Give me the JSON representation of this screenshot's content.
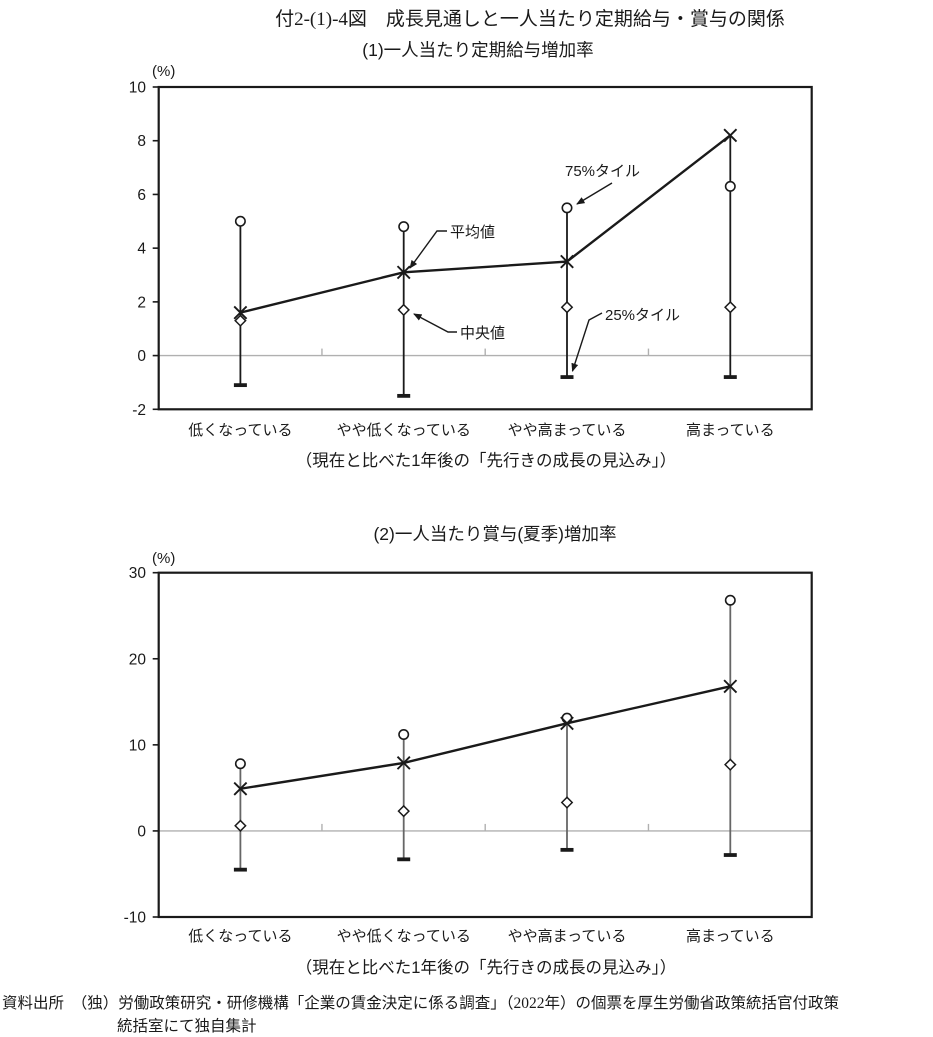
{
  "page": {
    "title": "付2-(1)-4図　成長見通しと一人当たり定期給与・賞与の関係",
    "source": {
      "line1": "資料出所　（独）労働政策研究・研修機構「企業の賃金決定に係る調査」（2022年）の個票を厚生労働省政策統括官付政策",
      "line2": "統括室にて独自集計"
    }
  },
  "chart_data": [
    {
      "type": "line",
      "title": "(1)一人当たり定期給与増加率",
      "unit_label": "(%)",
      "xlabel": "（現在と比べた1年後の「先行きの成長の見込み」）",
      "categories": [
        "低くなっている",
        "やや低くなっている",
        "やや高まっている",
        "高まっている"
      ],
      "ylim": [
        -2,
        10
      ],
      "yticks": [
        10,
        8,
        6,
        4,
        2,
        0,
        -2
      ],
      "grid": "zero-line-only",
      "legend": "inline-callouts",
      "series": [
        {
          "name": "75%タイル",
          "marker": "circle",
          "values": [
            5.0,
            4.8,
            5.5,
            6.3
          ]
        },
        {
          "name": "平均値",
          "marker": "x",
          "line": true,
          "values": [
            1.6,
            3.1,
            3.5,
            8.2
          ]
        },
        {
          "name": "中央値",
          "marker": "diamond",
          "values": [
            1.3,
            1.7,
            1.8,
            1.8
          ]
        },
        {
          "name": "25%タイル",
          "marker": "cap",
          "values": [
            -1.1,
            -1.5,
            -0.8,
            -0.8
          ]
        }
      ]
    },
    {
      "type": "line",
      "title": "(2)一人当たり賞与(夏季)増加率",
      "unit_label": "(%)",
      "xlabel": "（現在と比べた1年後の「先行きの成長の見込み」）",
      "categories": [
        "低くなっている",
        "やや低くなっている",
        "やや高まっている",
        "高まっている"
      ],
      "ylim": [
        -10,
        30
      ],
      "yticks": [
        30,
        20,
        10,
        0,
        -10
      ],
      "grid": "zero-line-only",
      "legend": "none",
      "series": [
        {
          "name": "75%タイル",
          "marker": "circle",
          "values": [
            7.8,
            11.2,
            13.1,
            26.8
          ]
        },
        {
          "name": "平均値",
          "marker": "x",
          "line": true,
          "values": [
            4.9,
            7.9,
            12.5,
            16.8
          ]
        },
        {
          "name": "中央値",
          "marker": "diamond",
          "values": [
            0.6,
            2.3,
            3.3,
            7.7
          ]
        },
        {
          "name": "25%タイル",
          "marker": "cap",
          "values": [
            -4.5,
            -3.3,
            -2.2,
            -2.8
          ]
        }
      ]
    }
  ]
}
